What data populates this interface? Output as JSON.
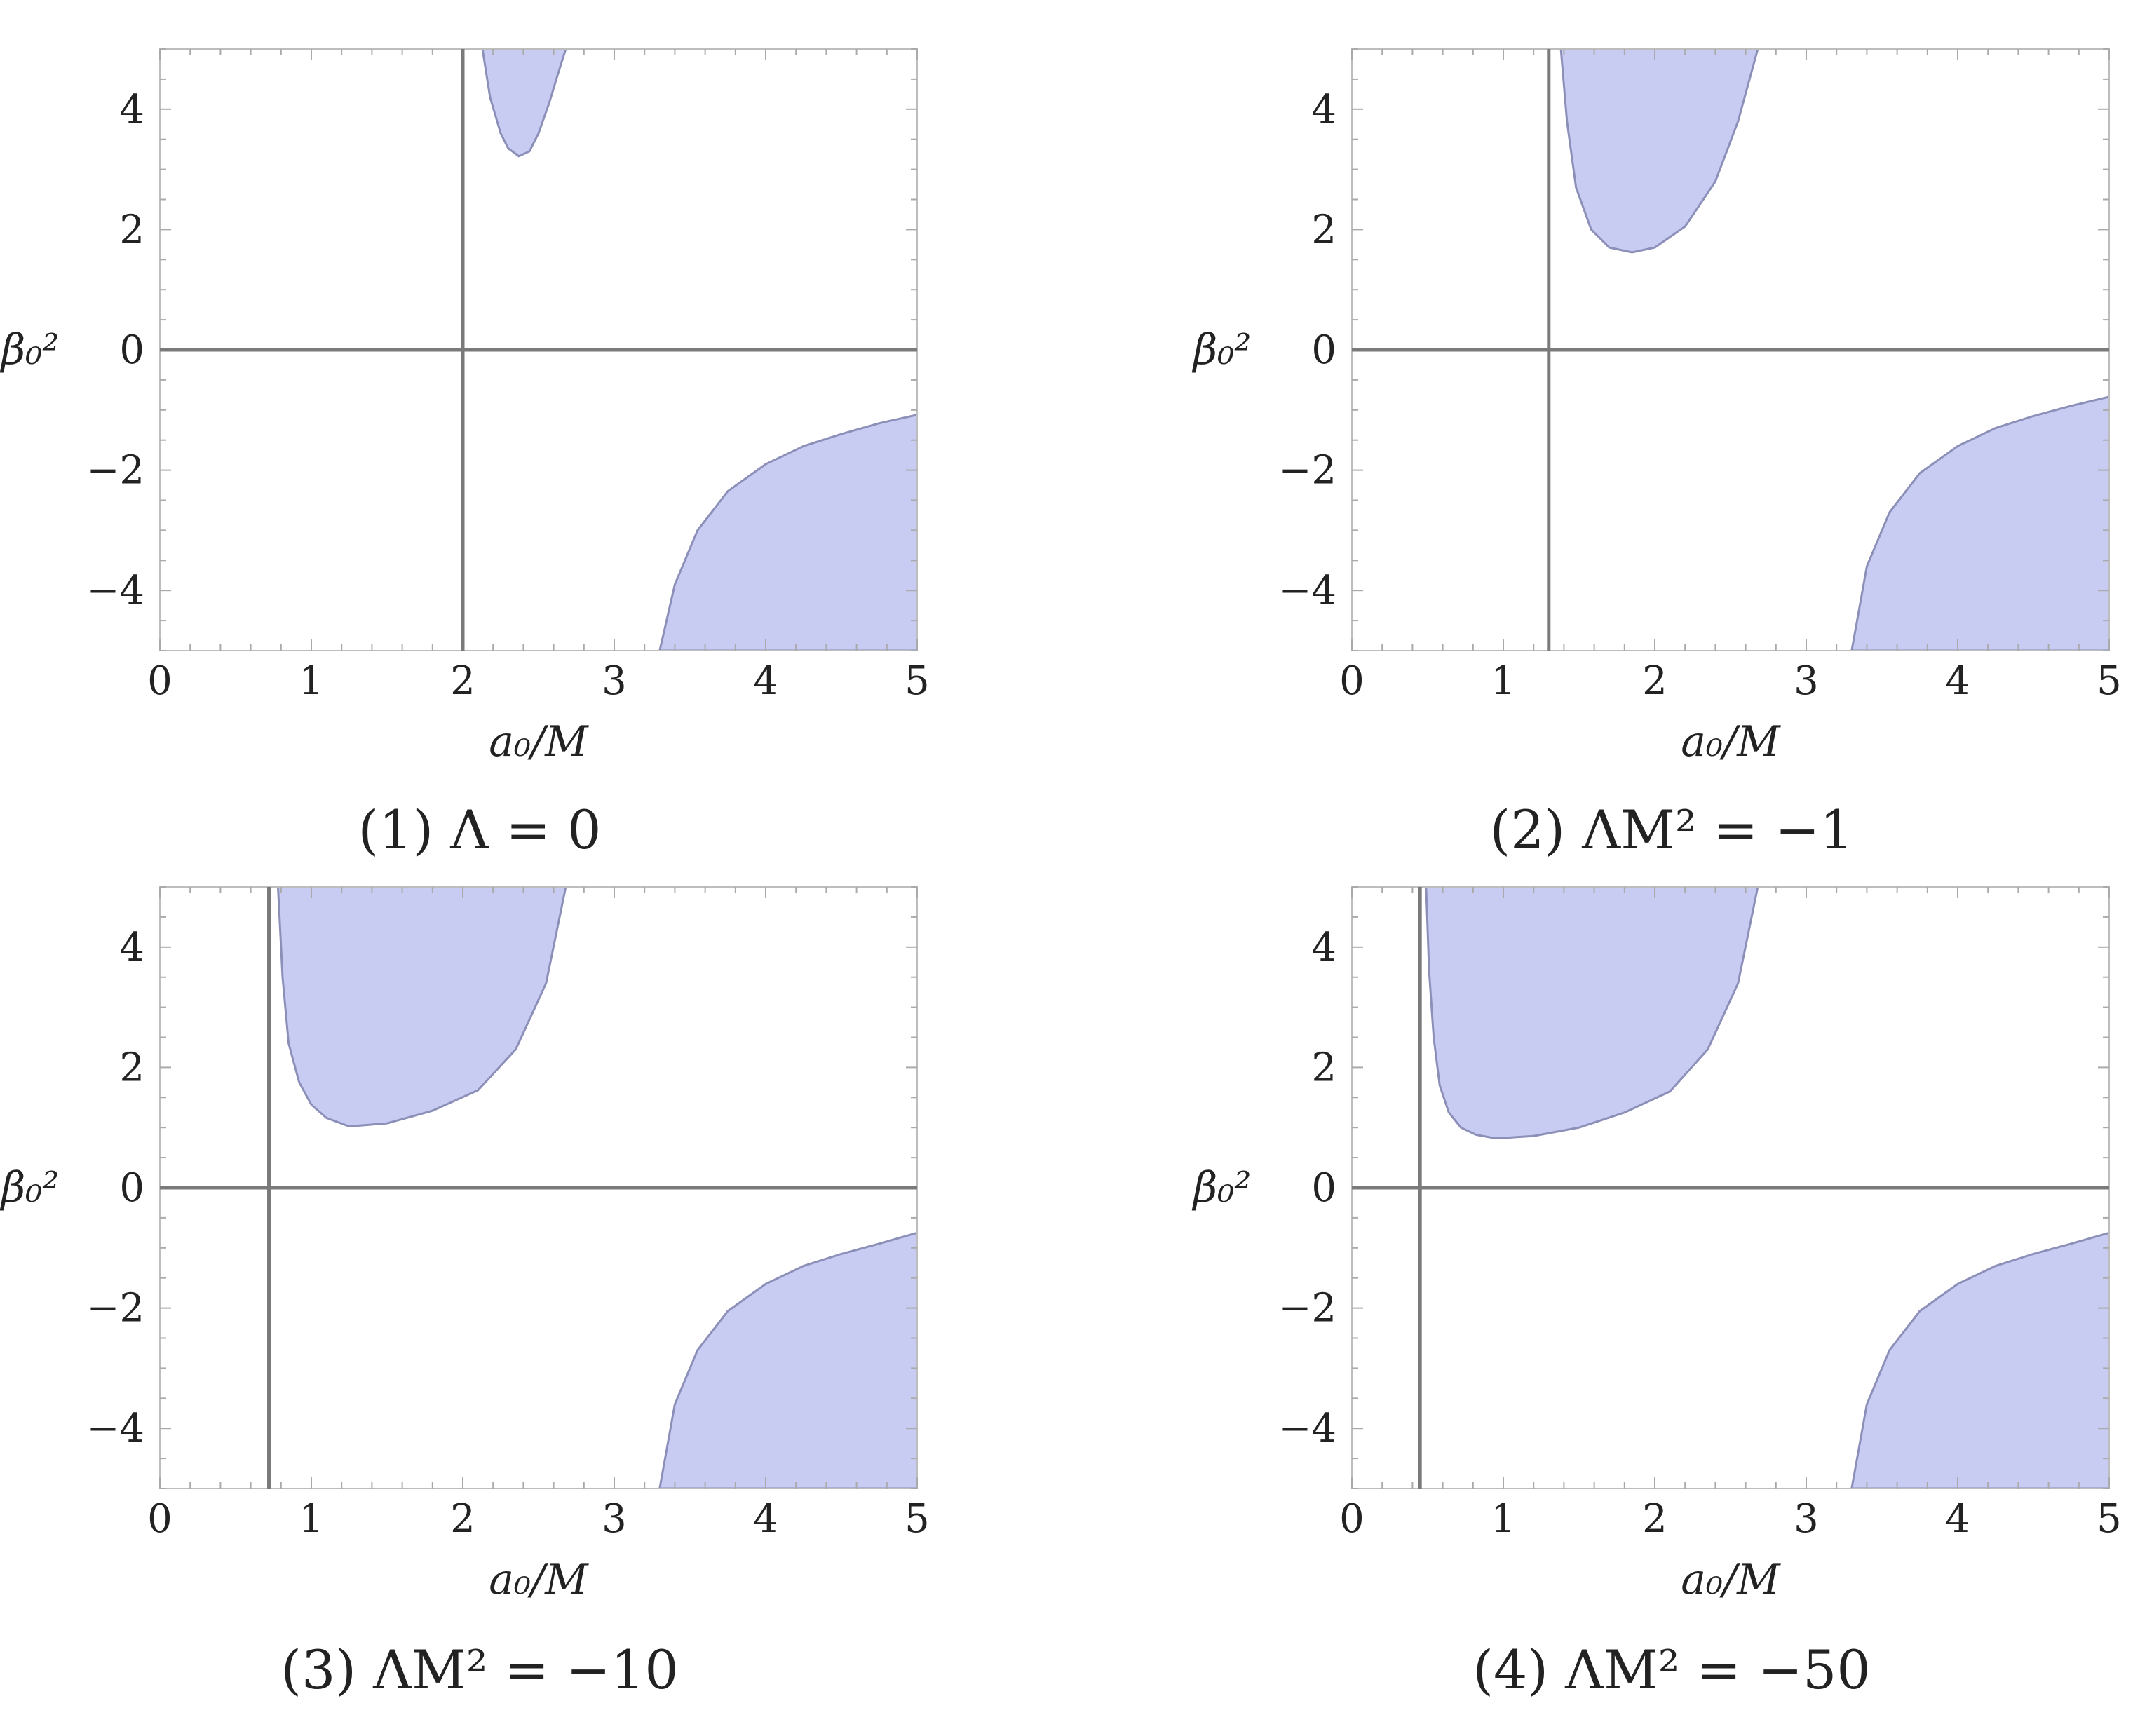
{
  "chart_data": [
    {
      "type": "area",
      "caption": "(1) Λ = 0",
      "xlabel": "a₀/M",
      "ylabel": "β₀²",
      "xlim": [
        0,
        5
      ],
      "ylim": [
        -5,
        5
      ],
      "xticks": [
        "0",
        "1",
        "2",
        "3",
        "4",
        "5"
      ],
      "yticks": [
        "−4",
        "−2",
        "0",
        "2",
        "4"
      ],
      "vertical_line_x": 2.0,
      "fill_color": "#c9ccf2",
      "edge_color": "#8c8fb8",
      "regions": [
        {
          "name": "upper",
          "x": [
            2.13,
            2.18,
            2.25,
            2.3,
            2.37,
            2.44,
            2.5,
            2.57,
            2.63,
            2.68
          ],
          "y": [
            5.0,
            4.2,
            3.6,
            3.35,
            3.22,
            3.3,
            3.6,
            4.1,
            4.6,
            5.0
          ]
        },
        {
          "name": "lower",
          "x": [
            3.3,
            3.4,
            3.55,
            3.75,
            4.0,
            4.25,
            4.5,
            4.75,
            5.0
          ],
          "y": [
            -5.0,
            -3.9,
            -3.0,
            -2.35,
            -1.9,
            -1.6,
            -1.4,
            -1.22,
            -1.08
          ]
        }
      ]
    },
    {
      "type": "area",
      "caption": "(2) ΛM² = −1",
      "xlabel": "a₀/M",
      "ylabel": "β₀²",
      "xlim": [
        0,
        5
      ],
      "ylim": [
        -5,
        5
      ],
      "xticks": [
        "0",
        "1",
        "2",
        "3",
        "4",
        "5"
      ],
      "yticks": [
        "−4",
        "−2",
        "0",
        "2",
        "4"
      ],
      "vertical_line_x": 1.3,
      "fill_color": "#c9ccf2",
      "edge_color": "#8c8fb8",
      "regions": [
        {
          "name": "upper",
          "x": [
            1.38,
            1.42,
            1.48,
            1.58,
            1.7,
            1.85,
            2.0,
            2.2,
            2.4,
            2.55,
            2.68
          ],
          "y": [
            5.0,
            3.8,
            2.7,
            2.0,
            1.7,
            1.62,
            1.7,
            2.05,
            2.8,
            3.8,
            5.0
          ]
        },
        {
          "name": "lower",
          "x": [
            3.3,
            3.4,
            3.55,
            3.75,
            4.0,
            4.25,
            4.5,
            4.75,
            5.0
          ],
          "y": [
            -5.0,
            -3.6,
            -2.7,
            -2.05,
            -1.6,
            -1.3,
            -1.1,
            -0.93,
            -0.78
          ]
        }
      ]
    },
    {
      "type": "area",
      "caption": "(3) ΛM² = −10",
      "xlabel": "a₀/M",
      "ylabel": "β₀²",
      "xlim": [
        0,
        5
      ],
      "ylim": [
        -5,
        5
      ],
      "xticks": [
        "0",
        "1",
        "2",
        "3",
        "4",
        "5"
      ],
      "yticks": [
        "−4",
        "−2",
        "0",
        "2",
        "4"
      ],
      "vertical_line_x": 0.72,
      "fill_color": "#c9ccf2",
      "edge_color": "#8c8fb8",
      "regions": [
        {
          "name": "upper",
          "x": [
            0.78,
            0.81,
            0.85,
            0.92,
            1.0,
            1.1,
            1.25,
            1.5,
            1.8,
            2.1,
            2.35,
            2.55,
            2.68
          ],
          "y": [
            5.0,
            3.5,
            2.4,
            1.75,
            1.38,
            1.16,
            1.02,
            1.07,
            1.28,
            1.62,
            2.3,
            3.4,
            5.0
          ]
        },
        {
          "name": "lower",
          "x": [
            3.3,
            3.4,
            3.55,
            3.75,
            4.0,
            4.25,
            4.5,
            4.75,
            5.0
          ],
          "y": [
            -5.0,
            -3.6,
            -2.7,
            -2.05,
            -1.6,
            -1.3,
            -1.1,
            -0.93,
            -0.75
          ]
        }
      ]
    },
    {
      "type": "area",
      "caption": "(4) ΛM² = −50",
      "xlabel": "a₀/M",
      "ylabel": "β₀²",
      "xlim": [
        0,
        5
      ],
      "ylim": [
        -5,
        5
      ],
      "xticks": [
        "0",
        "1",
        "2",
        "3",
        "4",
        "5"
      ],
      "yticks": [
        "−4",
        "−2",
        "0",
        "2",
        "4"
      ],
      "vertical_line_x": 0.45,
      "fill_color": "#c9ccf2",
      "edge_color": "#8c8fb8",
      "regions": [
        {
          "name": "upper",
          "x": [
            0.49,
            0.51,
            0.54,
            0.58,
            0.64,
            0.72,
            0.82,
            0.95,
            1.2,
            1.5,
            1.8,
            2.1,
            2.35,
            2.55,
            2.68
          ],
          "y": [
            5.0,
            3.6,
            2.5,
            1.7,
            1.25,
            1.0,
            0.88,
            0.82,
            0.86,
            1.0,
            1.25,
            1.6,
            2.3,
            3.4,
            5.0
          ]
        },
        {
          "name": "lower",
          "x": [
            3.3,
            3.4,
            3.55,
            3.75,
            4.0,
            4.25,
            4.5,
            4.75,
            5.0
          ],
          "y": [
            -5.0,
            -3.6,
            -2.7,
            -2.05,
            -1.6,
            -1.3,
            -1.1,
            -0.93,
            -0.75
          ]
        }
      ]
    }
  ]
}
